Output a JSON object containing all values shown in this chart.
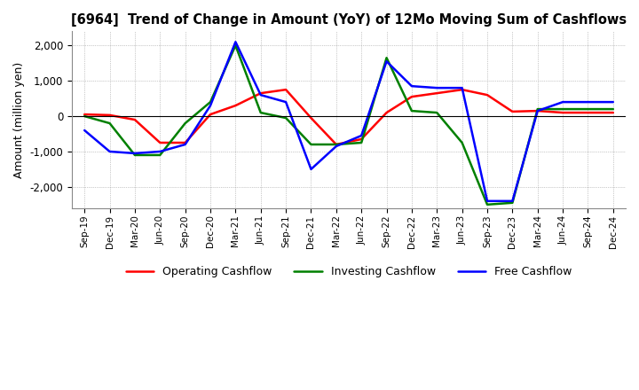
{
  "title": "[6964]  Trend of Change in Amount (YoY) of 12Mo Moving Sum of Cashflows",
  "ylabel": "Amount (million yen)",
  "x_labels": [
    "Sep-19",
    "Dec-19",
    "Mar-20",
    "Jun-20",
    "Sep-20",
    "Dec-20",
    "Mar-21",
    "Jun-21",
    "Sep-21",
    "Dec-21",
    "Mar-22",
    "Jun-22",
    "Sep-22",
    "Dec-22",
    "Mar-23",
    "Jun-23",
    "Sep-23",
    "Dec-23",
    "Mar-24",
    "Jun-24",
    "Sep-24",
    "Dec-24"
  ],
  "operating": [
    50,
    30,
    -100,
    -750,
    -750,
    50,
    300,
    650,
    750,
    -50,
    -800,
    -650,
    100,
    550,
    650,
    750,
    600,
    130,
    150,
    100,
    100,
    100
  ],
  "investing": [
    0,
    -200,
    -1100,
    -1100,
    -200,
    400,
    2000,
    100,
    -50,
    -800,
    -800,
    -750,
    1650,
    150,
    100,
    -750,
    -2500,
    -2450,
    200,
    200,
    200,
    200
  ],
  "free": [
    -400,
    -1000,
    -1050,
    -1000,
    -800,
    300,
    2100,
    600,
    400,
    -1500,
    -850,
    -550,
    1550,
    850,
    800,
    800,
    -2400,
    -2400,
    150,
    400,
    400,
    400
  ],
  "ylim": [
    -2600,
    2400
  ],
  "yticks": [
    -2000,
    -1000,
    0,
    1000,
    2000
  ],
  "operating_color": "#ff0000",
  "investing_color": "#008000",
  "free_color": "#0000ff",
  "line_width": 1.8,
  "bg_color": "#ffffff",
  "grid_color": "#999999"
}
